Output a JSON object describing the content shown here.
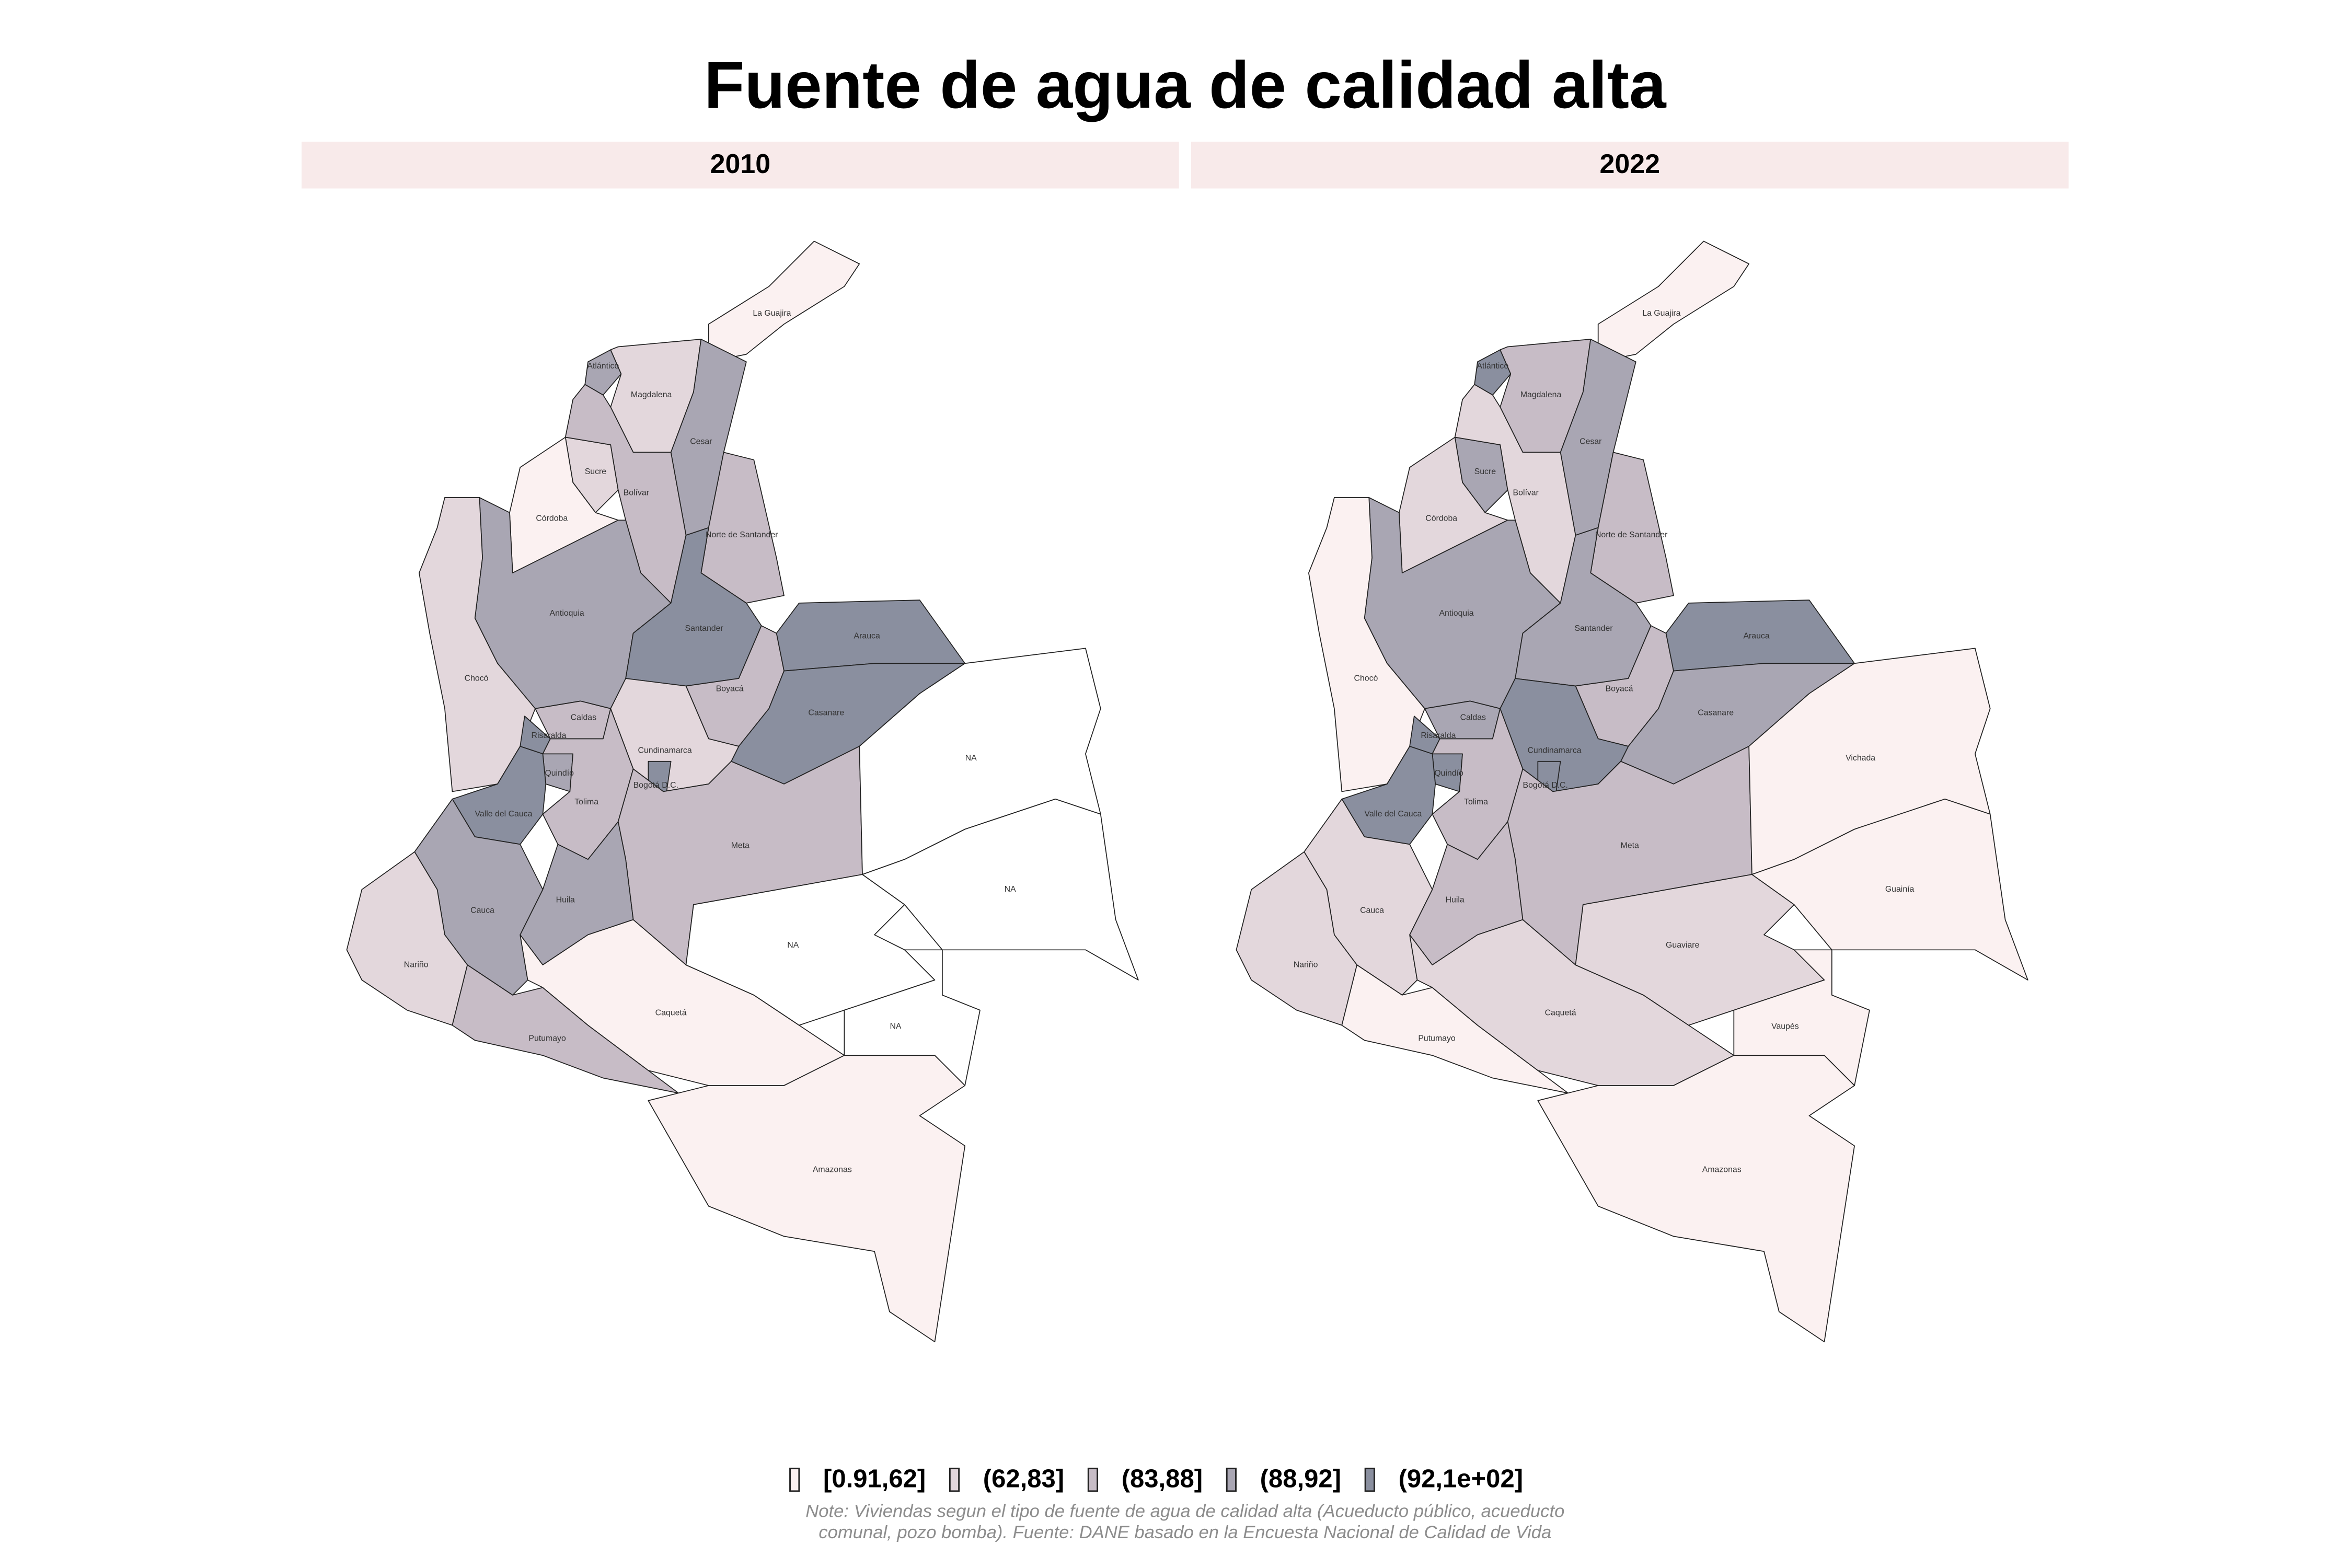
{
  "title": "Fuente de agua de calidad alta",
  "legend": [
    {
      "label": "[0.91,62]",
      "color": "#fbf1f1"
    },
    {
      "label": "(62,83]",
      "color": "#e3d7dc"
    },
    {
      "label": "(83,88]",
      "color": "#c7bcc6"
    },
    {
      "label": "(88,92]",
      "color": "#a9a6b3"
    },
    {
      "label": "(92,1e+02]",
      "color": "#8a8f9f"
    }
  ],
  "panels": [
    {
      "title": "2010",
      "regions": [
        {
          "label": "La Guajira",
          "class": "[0.91,62]"
        },
        {
          "label": "Atlántico",
          "class": "(88,92]"
        },
        {
          "label": "Magdalena",
          "class": "(62,83]"
        },
        {
          "label": "Cesar",
          "class": "(88,92]"
        },
        {
          "label": "Sucre",
          "class": "(62,83]"
        },
        {
          "label": "Bolívar",
          "class": "(83,88]"
        },
        {
          "label": "Córdoba",
          "class": "[0.91,62]"
        },
        {
          "label": "Norte de Santander",
          "class": "(83,88]"
        },
        {
          "label": "Antioquia",
          "class": "(88,92]"
        },
        {
          "label": "Santander",
          "class": "(92,1e+02]"
        },
        {
          "label": "Arauca",
          "class": "(92,1e+02]"
        },
        {
          "label": "Chocó",
          "class": "(62,83]"
        },
        {
          "label": "Caldas",
          "class": "(83,88]"
        },
        {
          "label": "Risaralda",
          "class": "(92,1e+02]"
        },
        {
          "label": "Quindío",
          "class": "(88,92]"
        },
        {
          "label": "Boyacá",
          "class": "(83,88]"
        },
        {
          "label": "Casanare",
          "class": "(92,1e+02]"
        },
        {
          "label": "Cundinamarca",
          "class": "(62,83]"
        },
        {
          "label": "Bogotá D.C.",
          "class": "(92,1e+02]"
        },
        {
          "label": "Tolima",
          "class": "(83,88]"
        },
        {
          "label": "Valle del Cauca",
          "class": "(92,1e+02]"
        },
        {
          "label": "Meta",
          "class": "(83,88]"
        },
        {
          "label": "Huila",
          "class": "(88,92]"
        },
        {
          "label": "Cauca",
          "class": "(88,92]"
        },
        {
          "label": "Nariño",
          "class": "(62,83]"
        },
        {
          "label": "Putumayo",
          "class": "(83,88]"
        },
        {
          "label": "Caquetá",
          "class": "[0.91,62]"
        },
        {
          "label": "NA",
          "class": null
        },
        {
          "label": "NA",
          "class": null
        },
        {
          "label": "NA",
          "class": null
        },
        {
          "label": "NA",
          "class": null
        },
        {
          "label": "Amazonas",
          "class": "[0.91,62]"
        }
      ]
    },
    {
      "title": "2022",
      "regions": [
        {
          "label": "La Guajira",
          "class": "[0.91,62]"
        },
        {
          "label": "Atlántico",
          "class": "(92,1e+02]"
        },
        {
          "label": "Magdalena",
          "class": "(83,88]"
        },
        {
          "label": "Cesar",
          "class": "(88,92]"
        },
        {
          "label": "Sucre",
          "class": "(88,92]"
        },
        {
          "label": "Bolívar",
          "class": "(62,83]"
        },
        {
          "label": "Córdoba",
          "class": "(62,83]"
        },
        {
          "label": "Norte de Santander",
          "class": "(83,88]"
        },
        {
          "label": "Antioquia",
          "class": "(88,92]"
        },
        {
          "label": "Santander",
          "class": "(88,92]"
        },
        {
          "label": "Arauca",
          "class": "(92,1e+02]"
        },
        {
          "label": "Chocó",
          "class": "[0.91,62]"
        },
        {
          "label": "Caldas",
          "class": "(88,92]"
        },
        {
          "label": "Risaralda",
          "class": "(92,1e+02]"
        },
        {
          "label": "Quindío",
          "class": "(92,1e+02]"
        },
        {
          "label": "Boyacá",
          "class": "(83,88]"
        },
        {
          "label": "Casanare",
          "class": "(88,92]"
        },
        {
          "label": "Cundinamarca",
          "class": "(92,1e+02]"
        },
        {
          "label": "Bogotá D.C.",
          "class": "(92,1e+02]"
        },
        {
          "label": "Tolima",
          "class": "(83,88]"
        },
        {
          "label": "Valle del Cauca",
          "class": "(92,1e+02]"
        },
        {
          "label": "Meta",
          "class": "(83,88]"
        },
        {
          "label": "Huila",
          "class": "(83,88]"
        },
        {
          "label": "Cauca",
          "class": "(62,83]"
        },
        {
          "label": "Nariño",
          "class": "(62,83]"
        },
        {
          "label": "Putumayo",
          "class": "[0.91,62]"
        },
        {
          "label": "Caquetá",
          "class": "(62,83]"
        },
        {
          "label": "Guaviare",
          "class": "(62,83]"
        },
        {
          "label": "Vichada",
          "class": "[0.91,62]"
        },
        {
          "label": "Guainía",
          "class": "[0.91,62]"
        },
        {
          "label": "Vaupés",
          "class": "[0.91,62]"
        },
        {
          "label": "Amazonas",
          "class": "[0.91,62]"
        }
      ]
    }
  ],
  "note": [
    "Note: Viviendas segun el tipo de fuente de agua de calidad alta (Acueducto público, acueducto",
    "comunal, pozo bomba). Fuente: DANE basado en la Encuesta Nacional de Calidad de Vida"
  ]
}
